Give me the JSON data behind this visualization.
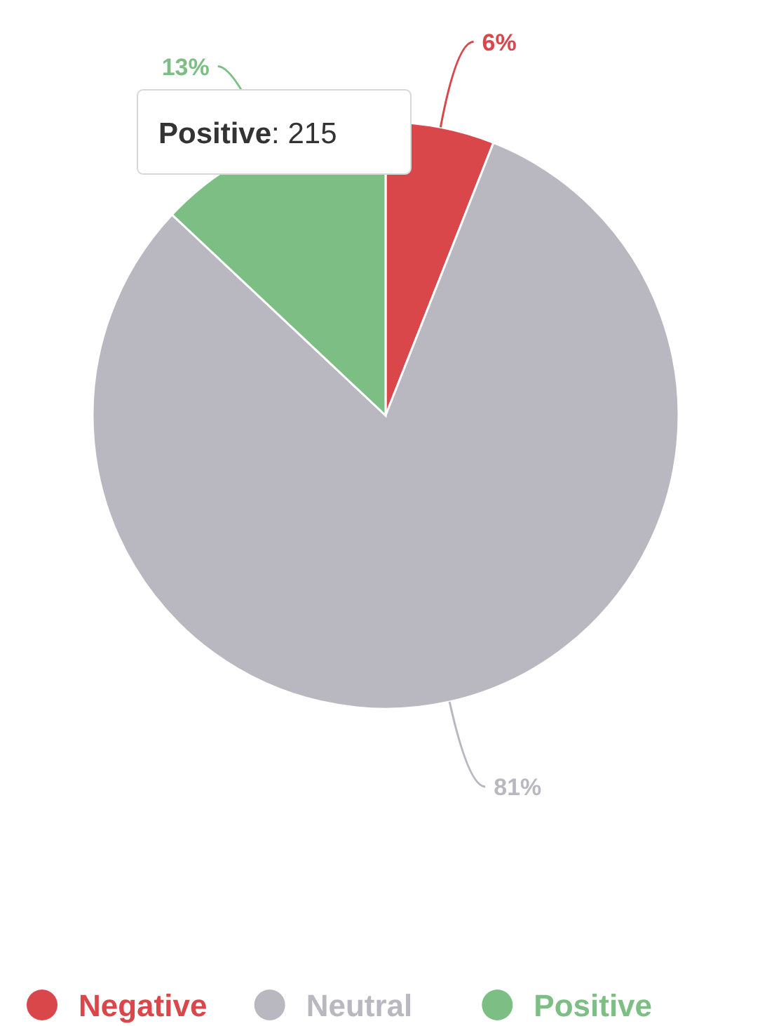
{
  "chart_data": {
    "type": "pie",
    "categories": [
      "Negative",
      "Neutral",
      "Positive"
    ],
    "values": [
      6,
      81,
      13
    ],
    "colors": [
      "#d9474b",
      "#b9b8c0",
      "#7dbe84"
    ],
    "value_labels": [
      "6%",
      "81%",
      "13%"
    ],
    "legend": "bottom",
    "annotations": [
      "Positive: 215"
    ]
  }
}
